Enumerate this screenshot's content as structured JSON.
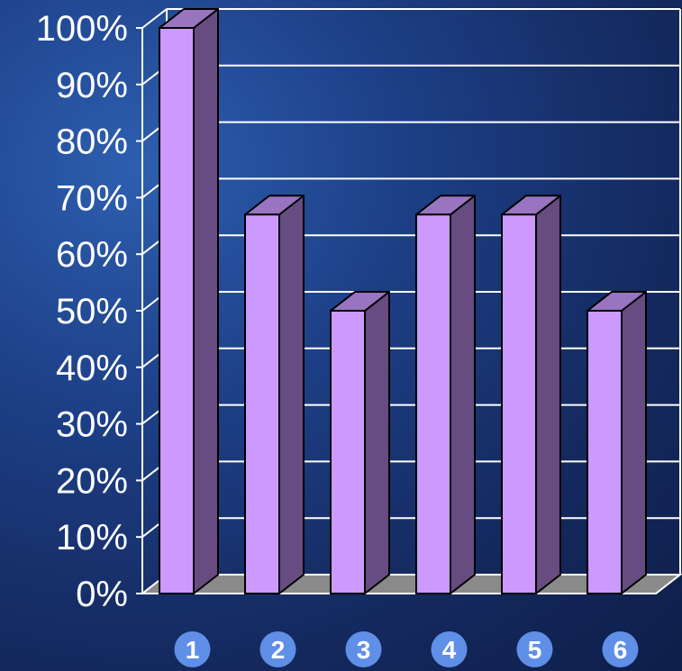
{
  "chart_data": {
    "type": "bar",
    "categories": [
      "1",
      "2",
      "3",
      "4",
      "5",
      "6"
    ],
    "values": [
      100,
      67,
      50,
      67,
      67,
      50
    ],
    "y_tick_labels": [
      "0%",
      "10%",
      "20%",
      "30%",
      "40%",
      "50%",
      "60%",
      "70%",
      "80%",
      "90%",
      "100%"
    ],
    "ylim": [
      0,
      100
    ],
    "title": "",
    "xlabel": "",
    "ylabel": "",
    "grid": true,
    "three_d": true,
    "colors": {
      "bar_front": "#cc99ff",
      "bar_side": "#664c80",
      "bar_top": "#9974c0",
      "floor": "#8a8a8a",
      "gridline": "#ffffff",
      "category_badge": "#5f8fe6",
      "text": "#ffffff"
    }
  }
}
